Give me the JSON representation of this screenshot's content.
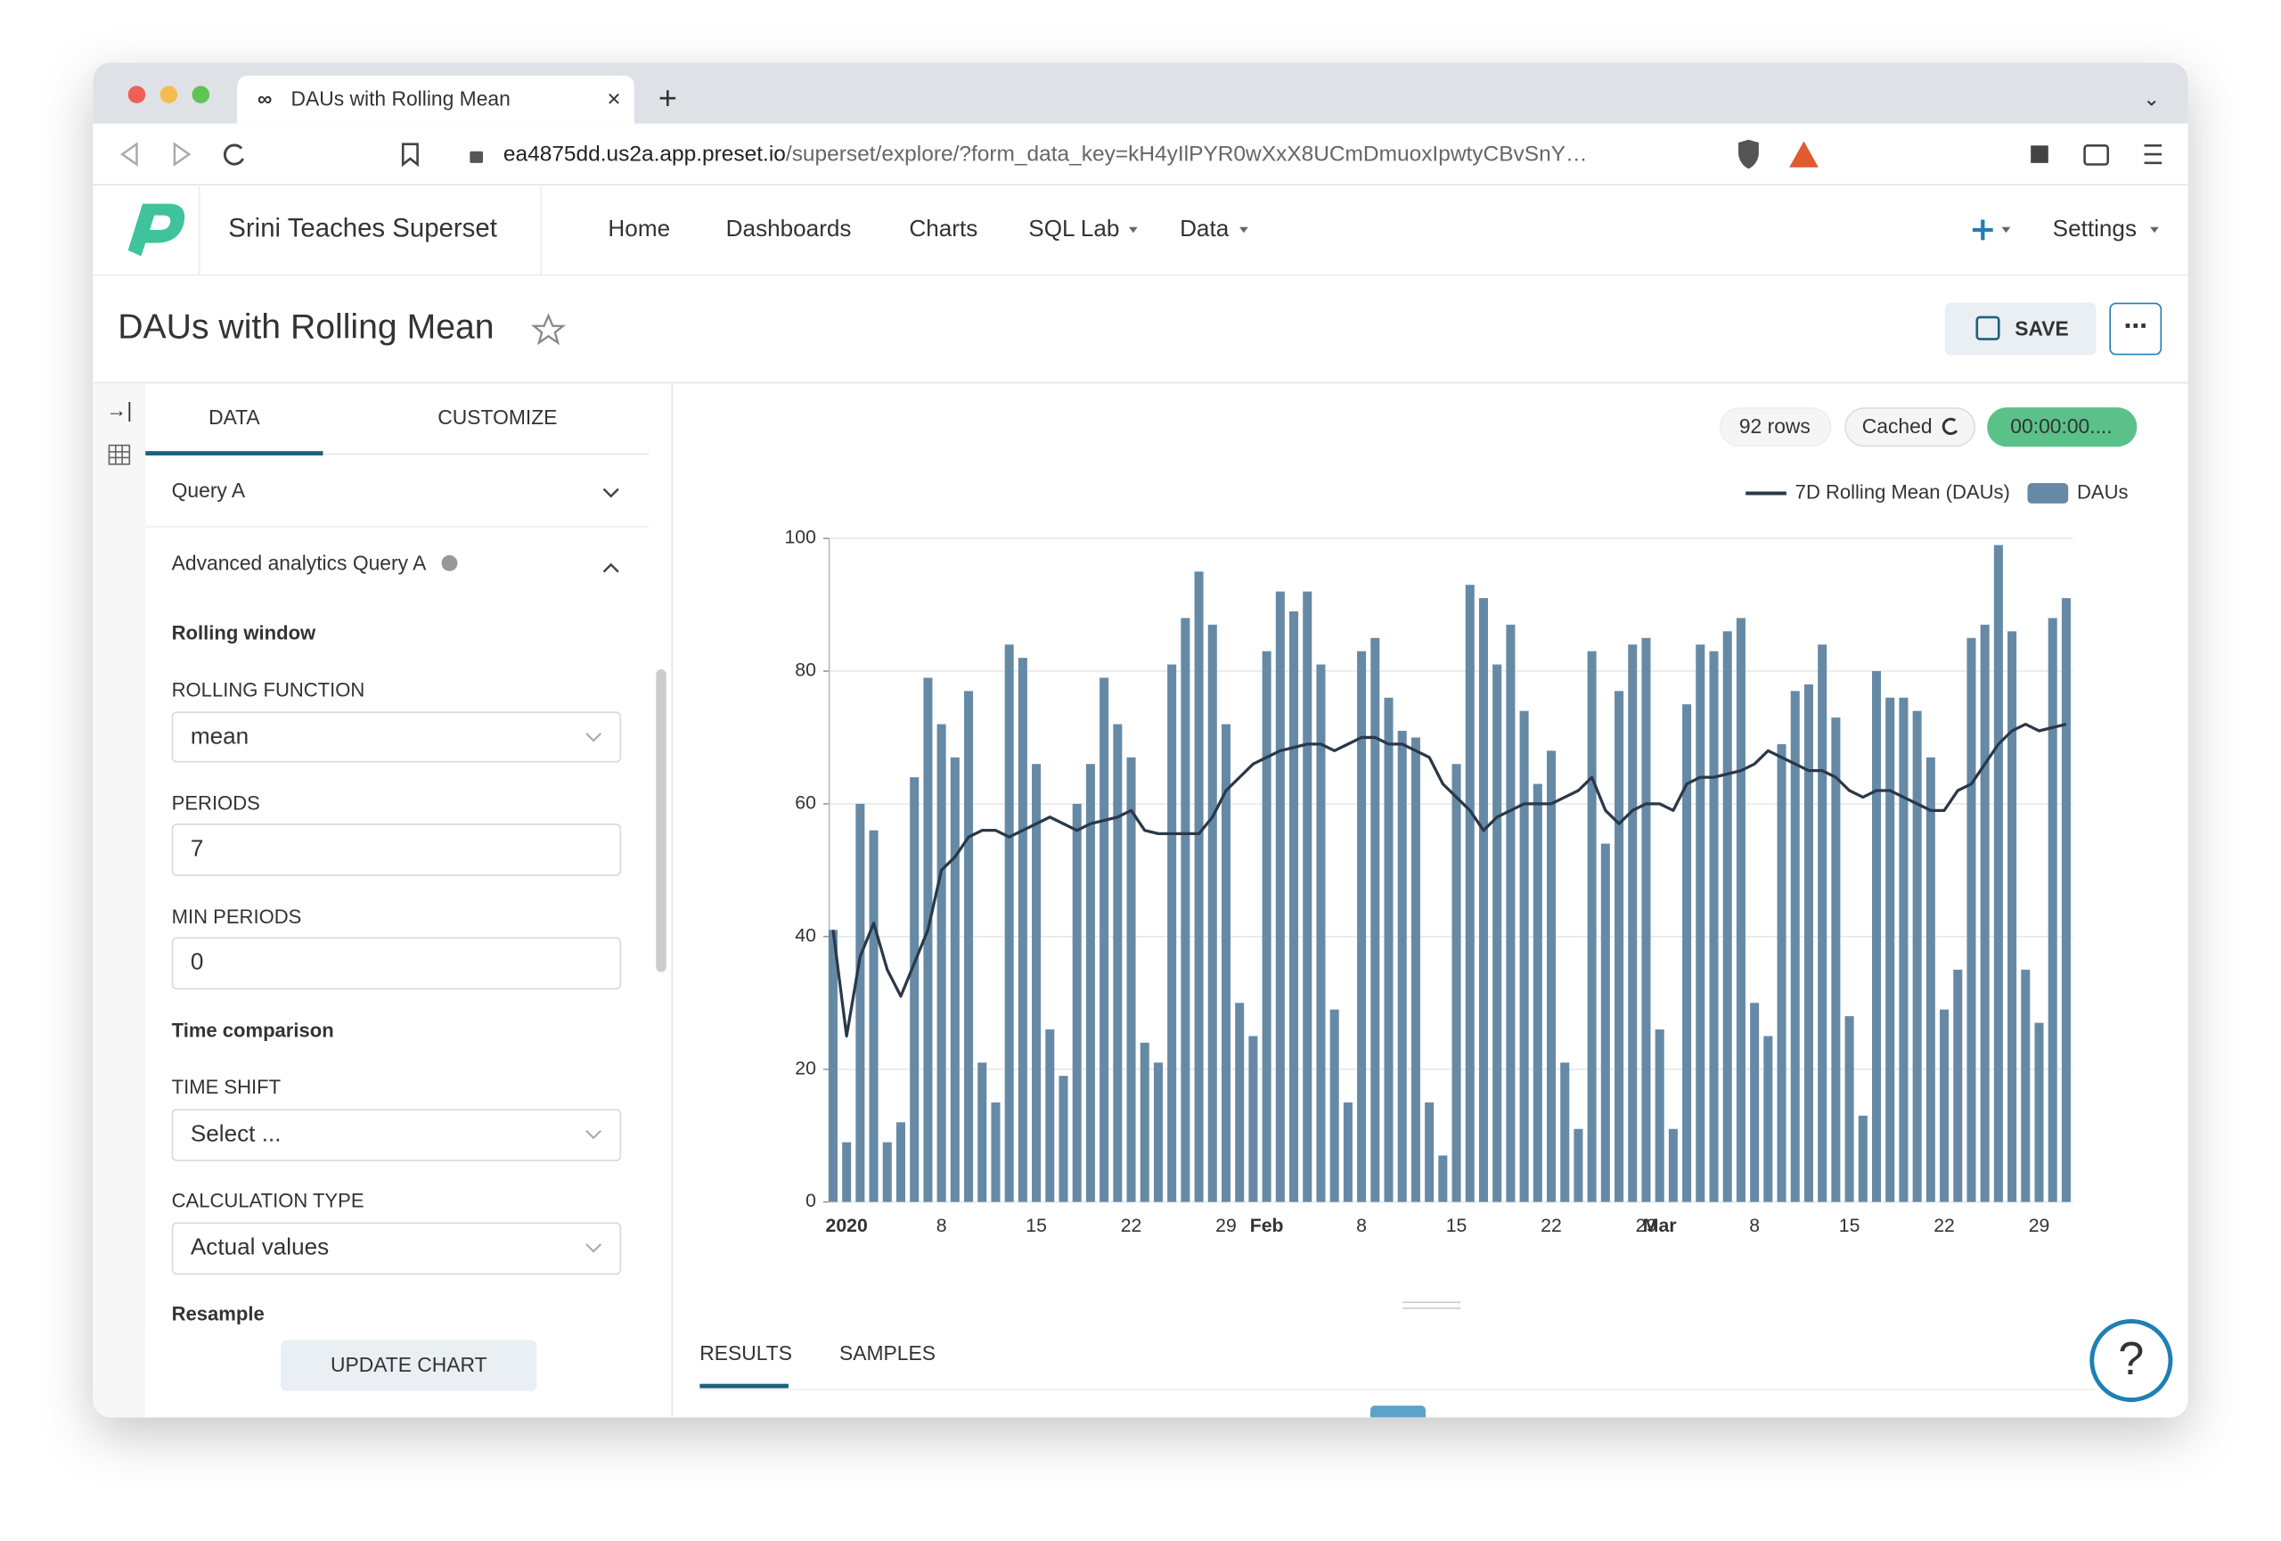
{
  "browser": {
    "tab_title": "DAUs with Rolling Mean",
    "url_host": "ea4875dd.us2a.app.preset.io",
    "url_path": "/superset/explore/?form_data_key=kH4yIlPYR0wXxX8UCmDmuoxIpwtyCBvSnY…"
  },
  "nav": {
    "workspace": "Srini Teaches Superset",
    "items": [
      "Home",
      "Dashboards",
      "Charts",
      "SQL Lab",
      "Data"
    ],
    "settings": "Settings"
  },
  "header": {
    "title": "DAUs with Rolling Mean",
    "save": "SAVE"
  },
  "panel": {
    "tabs": [
      "DATA",
      "CUSTOMIZE"
    ],
    "query": "Query A",
    "advanced": "Advanced analytics Query A",
    "rolling_window": "Rolling window",
    "rolling_function": {
      "label": "ROLLING FUNCTION",
      "value": "mean"
    },
    "periods": {
      "label": "PERIODS",
      "value": 7
    },
    "min_periods": {
      "label": "MIN PERIODS",
      "value": 0
    },
    "time_comparison": "Time comparison",
    "time_shift": {
      "label": "TIME SHIFT",
      "placeholder": "Select ..."
    },
    "calculation_type": {
      "label": "CALCULATION TYPE",
      "value": "Actual values"
    },
    "resample": "Resample",
    "update": "UPDATE CHART"
  },
  "status": {
    "rows": "92 rows",
    "cached": "Cached",
    "timer": "00:00:00...."
  },
  "bottom_tabs": [
    "RESULTS",
    "SAMPLES"
  ],
  "chart_data": {
    "type": "bar",
    "categories": [
      null,
      "2020",
      null,
      null,
      null,
      null,
      null,
      null,
      "8",
      null,
      null,
      null,
      null,
      null,
      null,
      "15",
      null,
      null,
      null,
      null,
      null,
      null,
      "22",
      null,
      null,
      null,
      null,
      null,
      null,
      "29",
      null,
      null,
      "Feb",
      null,
      null,
      null,
      null,
      null,
      null,
      "8",
      null,
      null,
      null,
      null,
      null,
      null,
      "15",
      null,
      null,
      null,
      null,
      null,
      null,
      "22",
      null,
      null,
      null,
      null,
      null,
      null,
      "29",
      "Mar",
      null,
      null,
      null,
      null,
      null,
      null,
      "8",
      null,
      null,
      null,
      null,
      null,
      null,
      "15",
      null,
      null,
      null,
      null,
      null,
      null,
      "22",
      null,
      null,
      null,
      null,
      null,
      null,
      "29",
      null,
      null
    ],
    "series": [
      {
        "name": "7D Rolling Mean (DAUs)",
        "type": "line",
        "color": "#2b3848",
        "values": [
          41,
          25,
          37,
          42,
          35,
          31,
          36,
          41,
          50,
          52,
          55,
          56,
          56,
          55,
          56,
          57,
          58,
          57,
          56,
          57,
          57.5,
          58,
          59,
          56,
          55.5,
          55.5,
          55.5,
          55.5,
          58,
          62,
          64,
          66,
          67,
          68,
          68.5,
          69,
          69,
          68,
          69,
          70,
          70,
          69,
          69,
          68,
          67,
          63,
          61,
          59,
          56,
          58,
          59,
          60,
          60,
          60,
          61,
          62,
          64,
          59,
          57,
          59,
          60,
          60,
          59,
          63,
          64,
          64,
          64.5,
          65,
          66,
          68,
          67,
          66,
          65,
          65,
          64,
          62,
          61,
          62,
          62,
          61,
          60,
          59,
          59,
          62,
          63,
          66,
          69,
          71,
          72,
          71,
          71.5,
          72
        ]
      },
      {
        "name": "DAUs",
        "type": "bar",
        "color": "#668aa6",
        "values": [
          41,
          9,
          60,
          56,
          9,
          12,
          64,
          79,
          72,
          67,
          77,
          21,
          15,
          84,
          82,
          66,
          26,
          19,
          60,
          66,
          79,
          72,
          67,
          24,
          21,
          81,
          88,
          95,
          87,
          72,
          30,
          25,
          83,
          92,
          89,
          92,
          81,
          29,
          15,
          83,
          85,
          76,
          71,
          70,
          15,
          7,
          66,
          93,
          91,
          81,
          87,
          74,
          63,
          68,
          21,
          11,
          83,
          54,
          77,
          84,
          85,
          26,
          11,
          75,
          84,
          83,
          86,
          88,
          30,
          25,
          69,
          77,
          78,
          84,
          73,
          28,
          13,
          80,
          76,
          76,
          74,
          67,
          29,
          35,
          85,
          87,
          99,
          86,
          35,
          27,
          88,
          91
        ]
      }
    ],
    "ylim": [
      0,
      100
    ],
    "yticks": [
      0,
      20,
      40,
      60,
      80,
      100
    ],
    "grid": true,
    "legend": "top-right"
  }
}
